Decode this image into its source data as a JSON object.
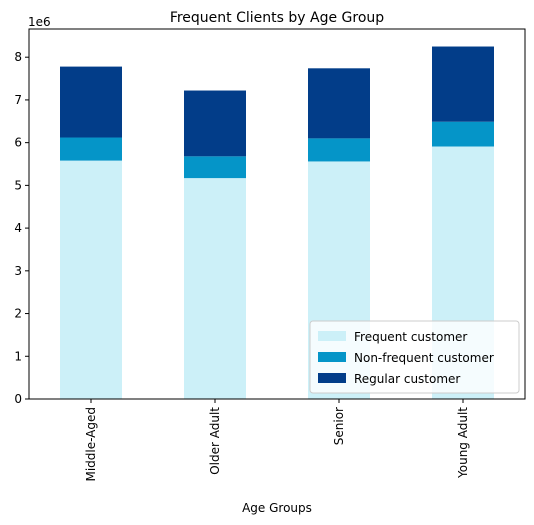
{
  "chart_data": {
    "type": "bar",
    "stacked": true,
    "title": "Frequent Clients by Age Group",
    "xlabel": "Age Groups",
    "ylabel": "",
    "y_offset_label": "1e6",
    "categories": [
      "Middle-Aged",
      "Older Adult",
      "Senior",
      "Young Adult"
    ],
    "series": [
      {
        "name": "Frequent customer",
        "color": "#ccf0f8",
        "values": [
          5580000,
          5170000,
          5560000,
          5910000
        ]
      },
      {
        "name": "Non-frequent customer",
        "color": "#0595c8",
        "values": [
          540000,
          510000,
          540000,
          580000
        ]
      },
      {
        "name": "Regular customer",
        "color": "#023d89",
        "values": [
          1660000,
          1540000,
          1640000,
          1760000
        ]
      }
    ],
    "ylim": [
      0,
      8660000
    ],
    "yticks": [
      0,
      1,
      2,
      3,
      4,
      5,
      6,
      7,
      8
    ],
    "legend_position": "lower-right",
    "grid": false
  }
}
